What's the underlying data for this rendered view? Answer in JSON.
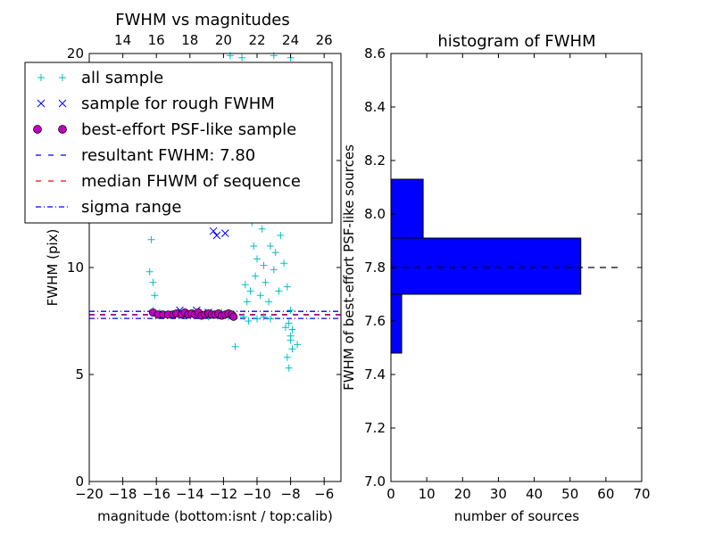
{
  "chart_data": [
    {
      "type": "scatter",
      "title": "FWHM vs magnitudes",
      "xlabel": "magnitude (bottom:isnt / top:calib)",
      "ylabel": "FWHM (pix)",
      "xlim": [
        -20,
        -5
      ],
      "ylim": [
        0,
        20
      ],
      "top_xlim": [
        12,
        27
      ],
      "x_ticks": [
        -20,
        -18,
        -16,
        -14,
        -12,
        -10,
        -8,
        -6
      ],
      "x_ticklabels": [
        "−20",
        "−18",
        "−16",
        "−14",
        "−12",
        "−10",
        "−8",
        "−6"
      ],
      "top_ticks": [
        14,
        16,
        18,
        20,
        22,
        24,
        26
      ],
      "y_ticks": [
        0,
        5,
        10,
        15,
        20
      ],
      "legend_position": "top-left",
      "legend": [
        {
          "label": "all sample",
          "marker": "plus",
          "color": "#00bfbf"
        },
        {
          "label": "sample for rough FWHM",
          "marker": "x",
          "color": "#0000ff"
        },
        {
          "label": "best-effort PSF-like sample",
          "marker": "circle",
          "color": "#bf00bf"
        },
        {
          "label": "resultant FWHM: 7.80",
          "marker": "dashed",
          "color": "#0000ff"
        },
        {
          "label": "median FHWM of sequence",
          "marker": "dashed",
          "color": "#ff0000"
        },
        {
          "label": "sigma range",
          "marker": "dashdot",
          "color": "#0000ff"
        }
      ],
      "series": [
        {
          "name": "all sample",
          "points": [
            [
              -16.3,
              11.3
            ],
            [
              -16.4,
              9.8
            ],
            [
              -16.2,
              9.3
            ],
            [
              -16.1,
              8.7
            ],
            [
              -16.2,
              8.0
            ],
            [
              -15.8,
              7.9
            ],
            [
              -15.2,
              7.8
            ],
            [
              -14.7,
              7.9
            ],
            [
              -14.3,
              7.8
            ],
            [
              -13.8,
              7.9
            ],
            [
              -13.4,
              7.8
            ],
            [
              -12.9,
              7.7
            ],
            [
              -12.5,
              7.8
            ],
            [
              -12.1,
              7.9
            ],
            [
              -11.7,
              7.7
            ],
            [
              -11.3,
              6.3
            ],
            [
              -10.7,
              9.2
            ],
            [
              -10.6,
              8.4
            ],
            [
              -10.5,
              7.5
            ],
            [
              -10.4,
              8.9
            ],
            [
              -10.3,
              12.1
            ],
            [
              -10.2,
              11.0
            ],
            [
              -10.1,
              9.6
            ],
            [
              -10.0,
              10.4
            ],
            [
              -9.9,
              13.2
            ],
            [
              -9.8,
              8.7
            ],
            [
              -9.7,
              11.8
            ],
            [
              -9.6,
              10.1
            ],
            [
              -9.5,
              9.3
            ],
            [
              -9.4,
              12.4
            ],
            [
              -9.3,
              8.4
            ],
            [
              -9.2,
              11.0
            ],
            [
              -9.1,
              13.6
            ],
            [
              -9.0,
              9.9
            ],
            [
              -8.9,
              10.7
            ],
            [
              -8.8,
              12.9
            ],
            [
              -8.7,
              8.9
            ],
            [
              -8.6,
              11.5
            ],
            [
              -8.5,
              14.2
            ],
            [
              -8.4,
              10.2
            ],
            [
              -8.3,
              12.7
            ],
            [
              -8.2,
              9.1
            ],
            [
              -8.1,
              7.4
            ],
            [
              -8.0,
              6.8
            ],
            [
              -7.9,
              6.2
            ],
            [
              -8.2,
              5.8
            ],
            [
              -8.1,
              5.3
            ],
            [
              -8.0,
              6.6
            ],
            [
              -8.3,
              7.2
            ],
            [
              -8.4,
              13.8
            ],
            [
              -8.2,
              15.1
            ],
            [
              -8.5,
              16.2
            ],
            [
              -8.1,
              17.0
            ],
            [
              -8.3,
              18.1
            ],
            [
              -8.6,
              15.6
            ],
            [
              -8.7,
              14.5
            ],
            [
              -8.9,
              16.3
            ],
            [
              -9.0,
              14.1
            ],
            [
              -7.6,
              6.4
            ],
            [
              -7.9,
              7.1
            ],
            [
              -8.0,
              8.0
            ],
            [
              -9.2,
              7.6
            ],
            [
              -9.6,
              7.7
            ],
            [
              -10.0,
              7.6
            ],
            [
              -10.8,
              7.7
            ],
            [
              -11.6,
              19.9
            ],
            [
              -10.9,
              19.8
            ],
            [
              -9.0,
              19.9
            ],
            [
              -8.0,
              19.8
            ],
            [
              -8.3,
              19.3
            ],
            [
              -10.6,
              17.2
            ],
            [
              -10.9,
              16.9
            ],
            [
              -10.2,
              16.6
            ]
          ]
        },
        {
          "name": "sample for rough FWHM",
          "points": [
            [
              -12.6,
              11.7
            ],
            [
              -12.4,
              11.5
            ],
            [
              -11.9,
              11.6
            ],
            [
              -13.6,
              8.0
            ],
            [
              -14.6,
              8.0
            ],
            [
              -12.9,
              7.9
            ]
          ]
        },
        {
          "name": "best-effort PSF-like sample",
          "points": [
            [
              -16.2,
              7.9
            ],
            [
              -15.9,
              7.8
            ],
            [
              -15.6,
              7.8
            ],
            [
              -15.3,
              7.8
            ],
            [
              -15.0,
              7.8
            ],
            [
              -14.8,
              7.85
            ],
            [
              -14.5,
              7.8
            ],
            [
              -14.3,
              7.9
            ],
            [
              -14.1,
              7.8
            ],
            [
              -13.9,
              7.85
            ],
            [
              -13.7,
              7.8
            ],
            [
              -13.5,
              7.9
            ],
            [
              -13.3,
              7.75
            ],
            [
              -13.1,
              7.8
            ],
            [
              -12.9,
              7.85
            ],
            [
              -12.7,
              7.8
            ],
            [
              -12.5,
              7.8
            ],
            [
              -12.3,
              7.85
            ],
            [
              -12.1,
              7.75
            ],
            [
              -11.9,
              7.8
            ],
            [
              -11.7,
              7.85
            ],
            [
              -11.5,
              7.8
            ],
            [
              -11.4,
              7.7
            ]
          ]
        }
      ],
      "lines": {
        "resultant_fwhm": 7.8,
        "median_fwhm_of_sequence": 7.78,
        "sigma_range": [
          7.95,
          7.62
        ]
      }
    },
    {
      "type": "bar",
      "orientation": "horizontal",
      "title": "histogram of FWHM",
      "xlabel": "number of sources",
      "ylabel": "FWHM of best-effort PSF-like sources",
      "xlim": [
        0,
        70
      ],
      "ylim": [
        7.0,
        8.6
      ],
      "x_ticks": [
        0,
        10,
        20,
        30,
        40,
        50,
        60,
        70
      ],
      "y_ticks": [
        7.0,
        7.2,
        7.4,
        7.6,
        7.8,
        8.0,
        8.2,
        8.4,
        8.6
      ],
      "y_ticklabels": [
        "7.0",
        "7.2",
        "7.4",
        "7.6",
        "7.8",
        "8.0",
        "8.2",
        "8.4",
        "8.6"
      ],
      "bar_color": "#0000ff",
      "bins": [
        {
          "from": 7.48,
          "to": 7.7,
          "count": 3
        },
        {
          "from": 7.7,
          "to": 7.91,
          "count": 53
        },
        {
          "from": 7.91,
          "to": 8.13,
          "count": 9
        }
      ],
      "reference_line": 7.8,
      "reference_line_xlim": [
        0,
        64
      ]
    }
  ]
}
